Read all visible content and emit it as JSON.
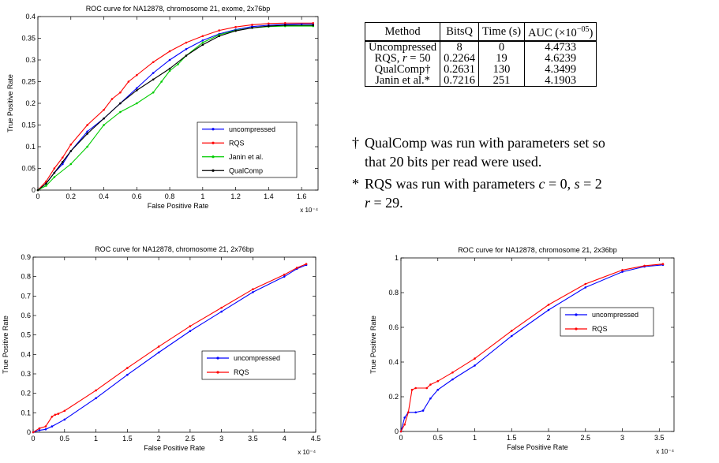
{
  "table": {
    "headers": [
      "Method",
      "BitsQ",
      "Time (s)",
      "AUC (×10⁻⁰⁵)"
    ],
    "rows": [
      [
        "Uncompressed",
        "8",
        "0",
        "4.4733"
      ],
      [
        "RQS, r = 50",
        "0.2264",
        "19",
        "4.6239"
      ],
      [
        "QualComp†",
        "0.2631",
        "130",
        "4.3499"
      ],
      [
        "Janin et al.*",
        "0.7216",
        "251",
        "4.1903"
      ]
    ]
  },
  "notes": {
    "dagger_mark": "†",
    "dagger_line1": "QualComp was run with parameters set so",
    "dagger_line2": "that 20 bits per read were used.",
    "star_mark": "*",
    "star_line1": "RQS was run with parameters c = 0, s = 2",
    "star_line2": "r = 29."
  },
  "chart_data": [
    {
      "type": "line",
      "title": "ROC curve for NA12878, chromosome 21, exome, 2x76bp",
      "xlabel": "False Positive Rate",
      "ylabel": "True Positive Rate",
      "x_multiplier": "x 10⁻⁴",
      "xlim": [
        0,
        1.7
      ],
      "ylim": [
        0,
        0.4
      ],
      "xticks": [
        "0",
        "0.2",
        "0.4",
        "0.6",
        "0.8",
        "1",
        "1.2",
        "1.4",
        "1.6"
      ],
      "yticks": [
        "0",
        "0.05",
        "0.1",
        "0.15",
        "0.2",
        "0.25",
        "0.3",
        "0.35",
        "0.4"
      ],
      "legend_position": "lower-right",
      "series": [
        {
          "name": "uncompressed",
          "color": "#0000ff",
          "points": [
            [
              0,
              0
            ],
            [
              0.05,
              0.015
            ],
            [
              0.1,
              0.04
            ],
            [
              0.15,
              0.06
            ],
            [
              0.2,
              0.09
            ],
            [
              0.3,
              0.135
            ],
            [
              0.4,
              0.165
            ],
            [
              0.5,
              0.2
            ],
            [
              0.6,
              0.235
            ],
            [
              0.7,
              0.27
            ],
            [
              0.8,
              0.3
            ],
            [
              0.9,
              0.325
            ],
            [
              1.0,
              0.345
            ],
            [
              1.1,
              0.36
            ],
            [
              1.2,
              0.37
            ],
            [
              1.3,
              0.377
            ],
            [
              1.4,
              0.38
            ],
            [
              1.5,
              0.382
            ],
            [
              1.6,
              0.383
            ],
            [
              1.67,
              0.383
            ]
          ]
        },
        {
          "name": "RQS",
          "color": "#ff0000",
          "points": [
            [
              0,
              0
            ],
            [
              0.05,
              0.02
            ],
            [
              0.1,
              0.05
            ],
            [
              0.15,
              0.075
            ],
            [
              0.2,
              0.105
            ],
            [
              0.3,
              0.15
            ],
            [
              0.4,
              0.185
            ],
            [
              0.45,
              0.21
            ],
            [
              0.5,
              0.225
            ],
            [
              0.55,
              0.25
            ],
            [
              0.6,
              0.265
            ],
            [
              0.7,
              0.295
            ],
            [
              0.8,
              0.32
            ],
            [
              0.9,
              0.34
            ],
            [
              1.0,
              0.355
            ],
            [
              1.1,
              0.368
            ],
            [
              1.2,
              0.376
            ],
            [
              1.3,
              0.381
            ],
            [
              1.4,
              0.384
            ],
            [
              1.5,
              0.385
            ],
            [
              1.67,
              0.385
            ]
          ]
        },
        {
          "name": "Janin et al.",
          "color": "#00cc00",
          "points": [
            [
              0,
              0
            ],
            [
              0.05,
              0.01
            ],
            [
              0.1,
              0.03
            ],
            [
              0.2,
              0.06
            ],
            [
              0.3,
              0.1
            ],
            [
              0.4,
              0.15
            ],
            [
              0.5,
              0.18
            ],
            [
              0.6,
              0.2
            ],
            [
              0.7,
              0.225
            ],
            [
              0.75,
              0.25
            ],
            [
              0.8,
              0.275
            ],
            [
              0.85,
              0.29
            ],
            [
              0.9,
              0.31
            ],
            [
              1.0,
              0.34
            ],
            [
              1.1,
              0.358
            ],
            [
              1.2,
              0.368
            ],
            [
              1.3,
              0.374
            ],
            [
              1.4,
              0.377
            ],
            [
              1.5,
              0.378
            ],
            [
              1.67,
              0.378
            ]
          ]
        },
        {
          "name": "QualComp",
          "color": "#000000",
          "points": [
            [
              0,
              0
            ],
            [
              0.05,
              0.015
            ],
            [
              0.1,
              0.04
            ],
            [
              0.15,
              0.065
            ],
            [
              0.2,
              0.09
            ],
            [
              0.3,
              0.13
            ],
            [
              0.4,
              0.165
            ],
            [
              0.5,
              0.2
            ],
            [
              0.6,
              0.23
            ],
            [
              0.7,
              0.255
            ],
            [
              0.8,
              0.28
            ],
            [
              0.9,
              0.31
            ],
            [
              1.0,
              0.335
            ],
            [
              1.1,
              0.355
            ],
            [
              1.2,
              0.367
            ],
            [
              1.3,
              0.374
            ],
            [
              1.4,
              0.378
            ],
            [
              1.5,
              0.38
            ],
            [
              1.67,
              0.38
            ]
          ]
        }
      ]
    },
    {
      "type": "line",
      "title": "ROC curve for NA12878, chromosome 21, 2x76bp",
      "xlabel": "False Positive Rate",
      "ylabel": "True Positive Rate",
      "x_multiplier": "x 10⁻⁴",
      "xlim": [
        0,
        4.5
      ],
      "ylim": [
        0,
        0.9
      ],
      "xticks": [
        "0",
        "0.5",
        "1",
        "1.5",
        "2",
        "2.5",
        "3",
        "3.5",
        "4",
        "4.5"
      ],
      "yticks": [
        "0",
        "0.1",
        "0.2",
        "0.3",
        "0.4",
        "0.5",
        "0.6",
        "0.7",
        "0.8",
        "0.9"
      ],
      "legend_position": "lower-right",
      "series": [
        {
          "name": "uncompressed",
          "color": "#0000ff",
          "points": [
            [
              0,
              0
            ],
            [
              0.1,
              0.01
            ],
            [
              0.2,
              0.015
            ],
            [
              0.3,
              0.03
            ],
            [
              0.5,
              0.065
            ],
            [
              1.0,
              0.175
            ],
            [
              1.5,
              0.295
            ],
            [
              2.0,
              0.41
            ],
            [
              2.5,
              0.52
            ],
            [
              3.0,
              0.62
            ],
            [
              3.5,
              0.72
            ],
            [
              4.0,
              0.8
            ],
            [
              4.2,
              0.84
            ],
            [
              4.35,
              0.86
            ]
          ]
        },
        {
          "name": "RQS",
          "color": "#ff0000",
          "points": [
            [
              0,
              0
            ],
            [
              0.1,
              0.02
            ],
            [
              0.2,
              0.03
            ],
            [
              0.3,
              0.08
            ],
            [
              0.35,
              0.09
            ],
            [
              0.4,
              0.095
            ],
            [
              0.5,
              0.11
            ],
            [
              1.0,
              0.215
            ],
            [
              1.5,
              0.33
            ],
            [
              2.0,
              0.44
            ],
            [
              2.5,
              0.545
            ],
            [
              3.0,
              0.64
            ],
            [
              3.5,
              0.735
            ],
            [
              4.0,
              0.81
            ],
            [
              4.2,
              0.845
            ],
            [
              4.35,
              0.865
            ]
          ]
        }
      ]
    },
    {
      "type": "line",
      "title": "ROC curve for NA12878, chromosome 21, 2x36bp",
      "xlabel": "False Positive Rate",
      "ylabel": "True Positive Rate",
      "x_multiplier": "x 10⁻⁴",
      "xlim": [
        0,
        3.7
      ],
      "ylim": [
        0,
        1
      ],
      "xticks": [
        "0",
        "0.5",
        "1",
        "1.5",
        "2",
        "2.5",
        "3",
        "3.5"
      ],
      "yticks": [
        "0",
        "0.2",
        "0.4",
        "0.6",
        "0.8",
        "1"
      ],
      "legend_position": "right",
      "series": [
        {
          "name": "uncompressed",
          "color": "#0000ff",
          "points": [
            [
              0,
              0
            ],
            [
              0.05,
              0.08
            ],
            [
              0.1,
              0.11
            ],
            [
              0.2,
              0.11
            ],
            [
              0.3,
              0.12
            ],
            [
              0.4,
              0.19
            ],
            [
              0.5,
              0.24
            ],
            [
              0.7,
              0.3
            ],
            [
              1.0,
              0.38
            ],
            [
              1.5,
              0.55
            ],
            [
              2.0,
              0.7
            ],
            [
              2.5,
              0.83
            ],
            [
              3.0,
              0.92
            ],
            [
              3.3,
              0.95
            ],
            [
              3.55,
              0.96
            ]
          ]
        },
        {
          "name": "RQS",
          "color": "#ff0000",
          "points": [
            [
              0,
              0
            ],
            [
              0.05,
              0.04
            ],
            [
              0.1,
              0.11
            ],
            [
              0.15,
              0.24
            ],
            [
              0.2,
              0.25
            ],
            [
              0.35,
              0.25
            ],
            [
              0.4,
              0.27
            ],
            [
              0.5,
              0.29
            ],
            [
              0.7,
              0.34
            ],
            [
              1.0,
              0.42
            ],
            [
              1.5,
              0.58
            ],
            [
              2.0,
              0.73
            ],
            [
              2.5,
              0.85
            ],
            [
              3.0,
              0.93
            ],
            [
              3.3,
              0.955
            ],
            [
              3.55,
              0.965
            ]
          ]
        }
      ]
    }
  ]
}
